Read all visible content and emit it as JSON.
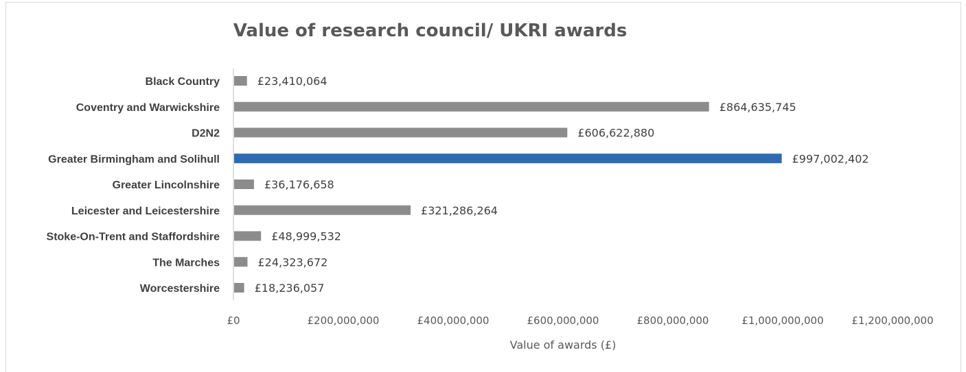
{
  "chart_data": {
    "type": "bar",
    "orientation": "horizontal",
    "title": "Value of research council/ UKRI awards",
    "xlabel": "Value of awards (£)",
    "ylabel": "",
    "categories": [
      "Black Country",
      "Coventry and Warwickshire",
      "D2N2",
      "Greater Birmingham and Solihull",
      "Greater Lincolnshire",
      "Leicester and Leicestershire",
      "Stoke-On-Trent and Staffordshire",
      "The Marches",
      "Worcestershire"
    ],
    "values": [
      23410064,
      864635745,
      606622880,
      997002402,
      36176658,
      321286264,
      48999532,
      24323672,
      18236057
    ],
    "data_labels": [
      "£23,410,064",
      "£864,635,745",
      "£606,622,880",
      "£997,002,402",
      "£36,176,658",
      "£321,286,264",
      "£48,999,532",
      "£24,323,672",
      "£18,236,057"
    ],
    "xlim": [
      0,
      1200000000
    ],
    "x_ticks": [
      0,
      200000000,
      400000000,
      600000000,
      800000000,
      1000000000,
      1200000000
    ],
    "x_tick_labels": [
      "£0",
      "£200,000,000",
      "£400,000,000",
      "£600,000,000",
      "£800,000,000",
      "£1,000,000,000",
      "£1,200,000,000"
    ],
    "grid": false,
    "legend": "none",
    "colors": {
      "default": "#8c8c8c",
      "highlight": "#2e6ab4",
      "axis": "#bfbfbf"
    },
    "highlight_index": 3
  }
}
